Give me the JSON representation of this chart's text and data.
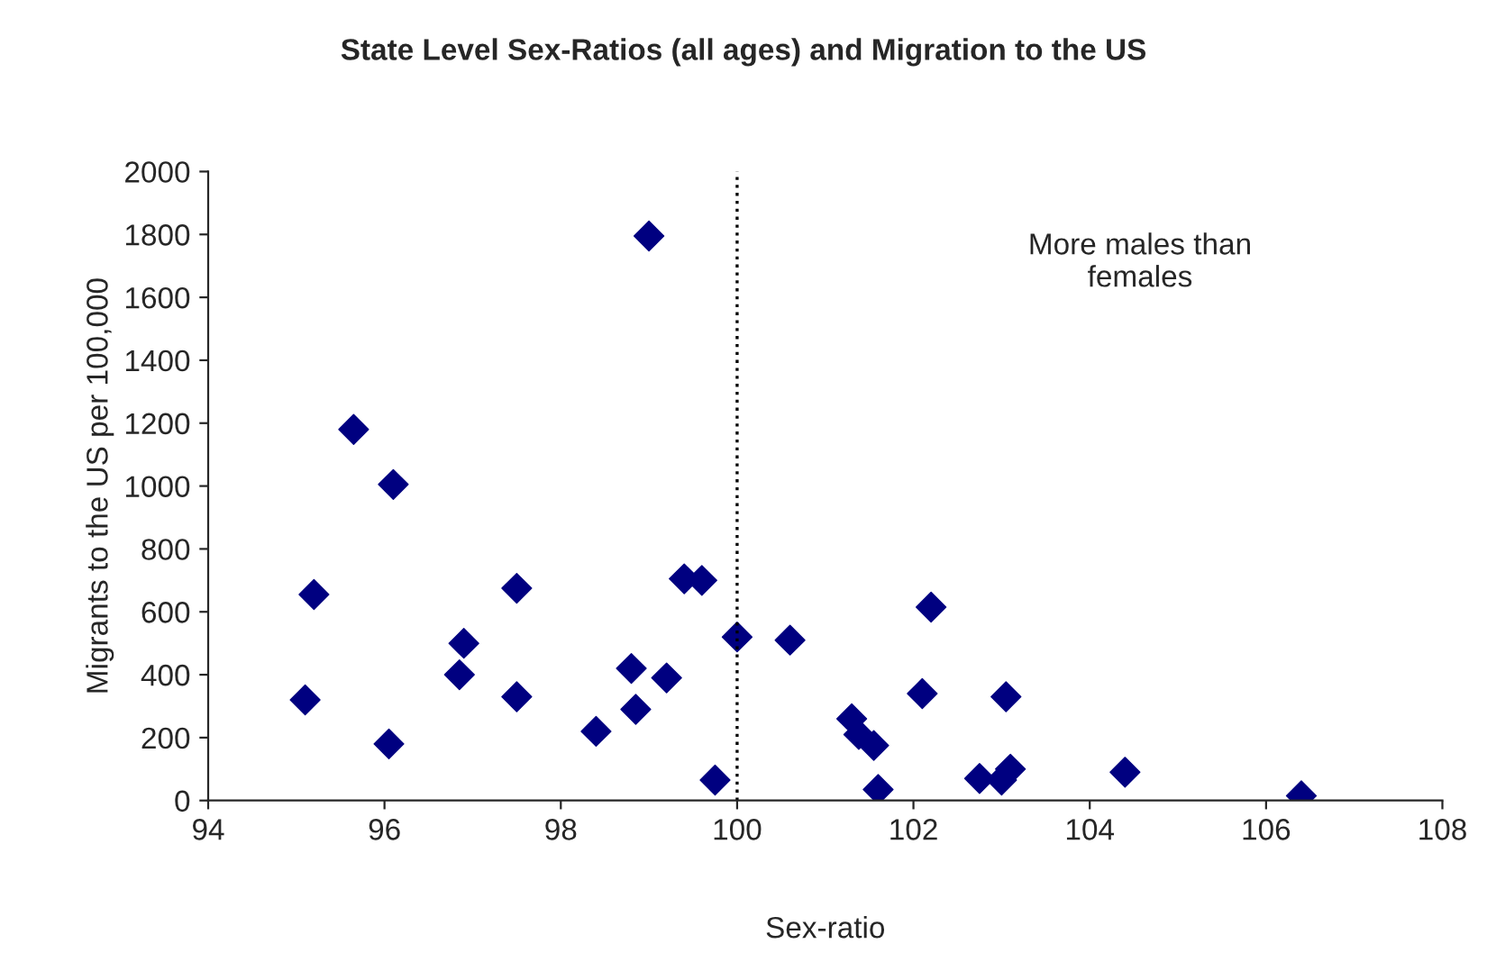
{
  "chart_data": {
    "type": "scatter",
    "title": "State Level Sex-Ratios (all ages) and Migration to the US",
    "xlabel": "Sex-ratio",
    "ylabel": "Migrants to the US per 100,000",
    "x": [
      95.1,
      95.2,
      95.65,
      96.05,
      96.1,
      96.85,
      96.9,
      97.5,
      97.5,
      98.4,
      98.8,
      98.85,
      99.0,
      99.2,
      99.4,
      99.6,
      99.75,
      100.0,
      100.6,
      101.3,
      101.38,
      101.55,
      101.6,
      102.1,
      102.2,
      102.75,
      103.0,
      103.05,
      103.1,
      104.4,
      106.4
    ],
    "series": [
      {
        "color": "#000080",
        "values": [
          320,
          655,
          1180,
          180,
          1005,
          400,
          500,
          330,
          675,
          220,
          420,
          290,
          1795,
          390,
          705,
          700,
          65,
          520,
          510,
          260,
          210,
          175,
          35,
          340,
          615,
          70,
          65,
          330,
          100,
          90,
          15
        ]
      }
    ],
    "marker": "diamond",
    "grid": false,
    "legend": false,
    "xlim": [
      94,
      108
    ],
    "xticks": [
      94,
      96,
      98,
      100,
      102,
      104,
      106,
      108
    ],
    "ylim": [
      0,
      2000
    ],
    "yticks": [
      0,
      200,
      400,
      600,
      800,
      1000,
      1200,
      1400,
      1600,
      1800,
      2000
    ],
    "ref_lines": [
      {
        "axis": "x",
        "value": 100,
        "line_style": "dotted",
        "color": "#000000"
      }
    ],
    "annotations": [
      "More males than\nfemales"
    ]
  }
}
